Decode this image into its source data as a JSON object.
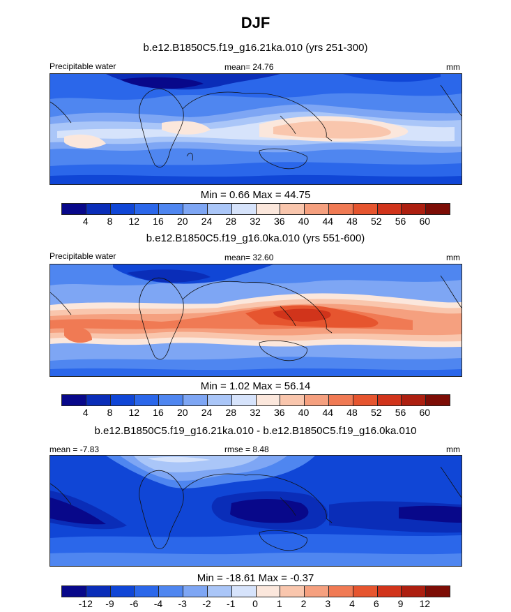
{
  "figure": {
    "title": "DJF"
  },
  "palette": [
    "#08088a",
    "#0a2db8",
    "#1046d6",
    "#2b67ea",
    "#4f86f0",
    "#7ea6f4",
    "#aac6f8",
    "#d6e3fb",
    "#fbe7dc",
    "#f9c6ad",
    "#f5a07f",
    "#f07a54",
    "#e6552f",
    "#d1341b",
    "#ad1f10",
    "#7d0d06"
  ],
  "chart_data": [
    {
      "type": "heatmap",
      "subtitle": "b.e12.B1850C5.f19_g16.21ka.010 (yrs 251-300)",
      "left_label": "Precipitable water",
      "center_label": "mean=  24.76",
      "right_label": "mm",
      "minmax_label": "Min =   0.66 Max =  44.75",
      "levels": [
        "4",
        "8",
        "12",
        "16",
        "20",
        "24",
        "28",
        "32",
        "36",
        "40",
        "44",
        "48",
        "52",
        "56",
        "60"
      ],
      "mean": 24.76,
      "min": 0.66,
      "max": 44.75,
      "units": "mm"
    },
    {
      "type": "heatmap",
      "subtitle": "b.e12.B1850C5.f19_g16.0ka.010 (yrs 551-600)",
      "left_label": "Precipitable water",
      "center_label": "mean=  32.60",
      "right_label": "mm",
      "minmax_label": "Min =   1.02 Max =  56.14",
      "levels": [
        "4",
        "8",
        "12",
        "16",
        "20",
        "24",
        "28",
        "32",
        "36",
        "40",
        "44",
        "48",
        "52",
        "56",
        "60"
      ],
      "mean": 32.6,
      "min": 1.02,
      "max": 56.14,
      "units": "mm"
    },
    {
      "type": "heatmap",
      "subtitle": "b.e12.B1850C5.f19_g16.21ka.010 - b.e12.B1850C5.f19_g16.0ka.010",
      "left_label": "mean =  -7.83",
      "center_label": "rmse =   8.48",
      "right_label": "mm",
      "minmax_label": "Min = -18.61 Max =  -0.37",
      "levels": [
        "-12",
        "-9",
        "-6",
        "-4",
        "-3",
        "-2",
        "-1",
        "0",
        "1",
        "2",
        "3",
        "4",
        "6",
        "9",
        "12"
      ],
      "mean": -7.83,
      "rmse": 8.48,
      "min": -18.61,
      "max": -0.37,
      "units": "mm"
    }
  ]
}
